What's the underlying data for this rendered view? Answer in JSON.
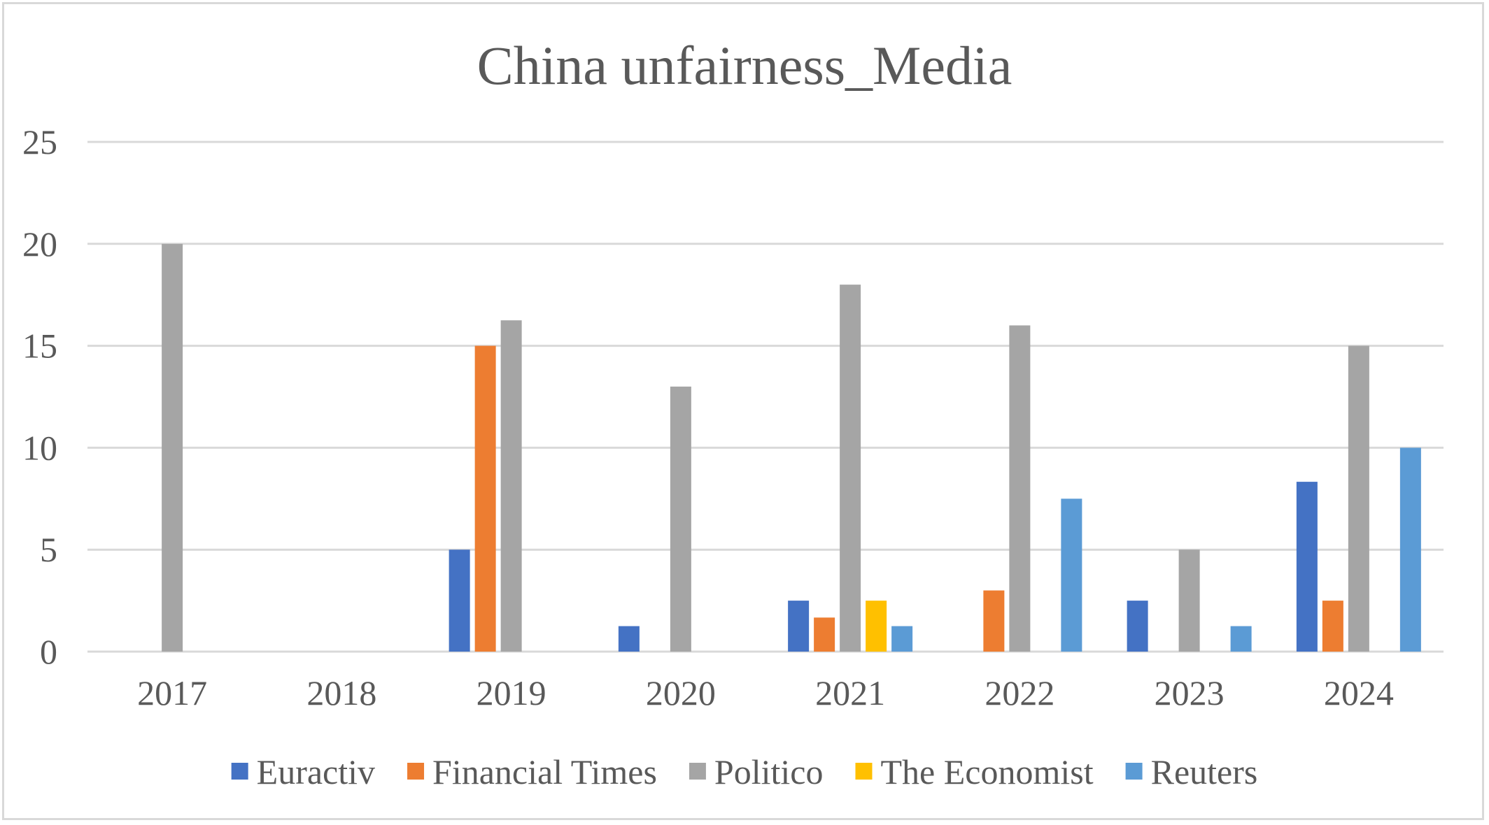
{
  "chart_data": {
    "type": "bar",
    "title": "China unfairness_Media",
    "xlabel": "",
    "ylabel": "",
    "categories": [
      "2017",
      "2018",
      "2019",
      "2020",
      "2021",
      "2022",
      "2023",
      "2024"
    ],
    "ylim": [
      0,
      25
    ],
    "yticks": [
      0,
      5,
      10,
      15,
      20,
      25
    ],
    "grid": true,
    "legend_position": "bottom",
    "series": [
      {
        "name": "Euractiv",
        "color": "#4472c4",
        "values": [
          0,
          0,
          5,
          1.25,
          2.5,
          0,
          2.5,
          8.33
        ]
      },
      {
        "name": "Financial Times",
        "color": "#ed7d31",
        "values": [
          0,
          0,
          15,
          0,
          1.67,
          3,
          0,
          2.5
        ]
      },
      {
        "name": "Politico",
        "color": "#a5a5a5",
        "values": [
          20,
          0,
          16.25,
          13,
          18,
          16,
          5,
          15
        ]
      },
      {
        "name": "The Economist",
        "color": "#ffc000",
        "values": [
          0,
          0,
          0,
          0,
          2.5,
          0,
          0,
          0
        ]
      },
      {
        "name": "Reuters",
        "color": "#5b9bd5",
        "values": [
          0,
          0,
          0,
          0,
          1.25,
          7.5,
          1.25,
          10
        ]
      }
    ]
  }
}
